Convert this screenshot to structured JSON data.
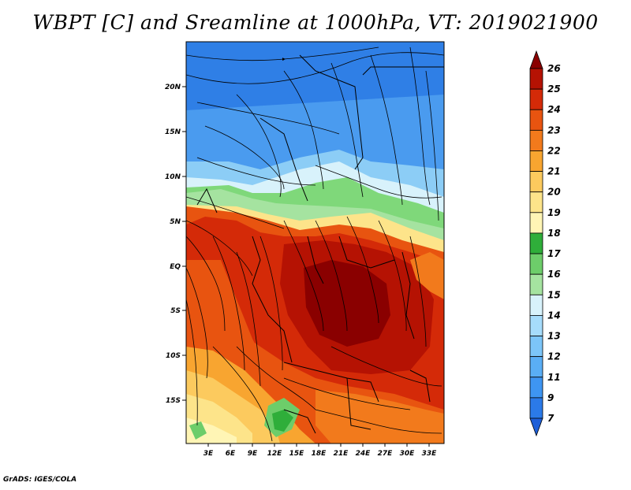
{
  "title": "WBPT [C] and Sreamline at 1000hPa, VT: 2019021900",
  "credit": "GrADS: IGES/COLA",
  "lat_ticks": [
    "20N",
    "15N",
    "10N",
    "5N",
    "EQ",
    "5S",
    "10S",
    "15S"
  ],
  "lon_ticks": [
    "3E",
    "6E",
    "9E",
    "12E",
    "15E",
    "18E",
    "21E",
    "24E",
    "27E",
    "30E",
    "33E"
  ],
  "colorbar": {
    "labels": [
      "7",
      "9",
      "11",
      "12",
      "13",
      "14",
      "15",
      "16",
      "17",
      "18",
      "19",
      "20",
      "21",
      "22",
      "23",
      "24",
      "25",
      "26"
    ],
    "colors": [
      "#1e5fd8",
      "#2b7ae8",
      "#3e95f2",
      "#5aaef5",
      "#7cc5f8",
      "#a6dcfb",
      "#d8f2fb",
      "#a5e3a0",
      "#6dcd6a",
      "#2fae3a",
      "#fff5b5",
      "#fde48a",
      "#fcca5e",
      "#f8a530",
      "#f27a1c",
      "#e85410",
      "#d42a08",
      "#b51203",
      "#8a0000"
    ]
  }
}
